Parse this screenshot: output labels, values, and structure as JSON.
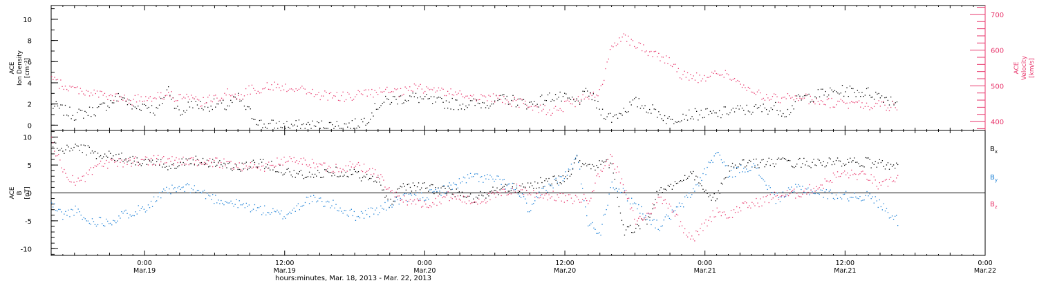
{
  "colors": {
    "axis": "#000000",
    "density": "#000000",
    "velocity": "#e8356b",
    "bx": "#000000",
    "by": "#1a7fd6",
    "bz": "#e8356b"
  },
  "figure": {
    "xlabel": "hours:minutes, Mar. 18, 2013 - Mar. 22, 2013"
  },
  "chart_data": [
    {
      "type": "scatter",
      "xlabel": "hours:minutes, Mar. 18, 2013 - Mar. 22, 2013",
      "xlim": [
        "2013-03-18 16:00",
        "2013-03-22 00:00"
      ],
      "x_ticks": [
        {
          "time": "0:00",
          "date": "Mar.19",
          "hours": 8
        },
        {
          "time": "12:00",
          "date": "Mar.19",
          "hours": 20
        },
        {
          "time": "0:00",
          "date": "Mar.20",
          "hours": 32
        },
        {
          "time": "12:00",
          "date": "Mar.20",
          "hours": 44
        },
        {
          "time": "0:00",
          "date": "Mar.21",
          "hours": 56
        },
        {
          "time": "12:00",
          "date": "Mar.21",
          "hours": 68
        },
        {
          "time": "0:00",
          "date": "Mar.22",
          "hours": 80
        }
      ],
      "data_end_hours": 72.5,
      "left_axis": {
        "label_lines": [
          "ACE",
          "Ion Density",
          "[cm⁻³]"
        ],
        "ylim": [
          -0.5,
          11.3
        ],
        "ticks": [
          0,
          2,
          4,
          6,
          8,
          10
        ]
      },
      "right_axis": {
        "label_lines": [
          "ACE",
          "Velocity",
          "[km/s]"
        ],
        "ylim": [
          375,
          725
        ],
        "ticks": [
          400,
          500,
          600,
          700
        ]
      },
      "series": [
        {
          "key": "density",
          "axis": "left",
          "points": [
            [
              0,
              1.9
            ],
            [
              2,
              1.0
            ],
            [
              4,
              1.5
            ],
            [
              6,
              2.8
            ],
            [
              7,
              1.6
            ],
            [
              8,
              2.0
            ],
            [
              9,
              1.3
            ],
            [
              10,
              3.5
            ],
            [
              11,
              1.0
            ],
            [
              12,
              2.2
            ],
            [
              13,
              1.8
            ],
            [
              14,
              2.0
            ],
            [
              15,
              1.8
            ],
            [
              16,
              2.6
            ],
            [
              17,
              1.2
            ],
            [
              18,
              0.1
            ],
            [
              20,
              0.0
            ],
            [
              22,
              0.0
            ],
            [
              24,
              0.0
            ],
            [
              26,
              0.1
            ],
            [
              27,
              0.6
            ],
            [
              28,
              2.0
            ],
            [
              29,
              2.4
            ],
            [
              31,
              2.7
            ],
            [
              33,
              2.2
            ],
            [
              35,
              2.0
            ],
            [
              37,
              2.1
            ],
            [
              39,
              2.5
            ],
            [
              41,
              2.0
            ],
            [
              43,
              2.8
            ],
            [
              45,
              2.2
            ],
            [
              46,
              3.2
            ],
            [
              47,
              1.4
            ],
            [
              48,
              0.7
            ],
            [
              50,
              2.2
            ],
            [
              52,
              1.2
            ],
            [
              53,
              0.4
            ],
            [
              54,
              1.0
            ],
            [
              56,
              1.1
            ],
            [
              57,
              1.0
            ],
            [
              58,
              1.4
            ],
            [
              60,
              1.5
            ],
            [
              62,
              1.7
            ],
            [
              63,
              1.2
            ],
            [
              64,
              2.5
            ],
            [
              66,
              3.0
            ],
            [
              68,
              3.3
            ],
            [
              70,
              3.1
            ],
            [
              71,
              2.8
            ],
            [
              72,
              2.4
            ],
            [
              72.5,
              2.2
            ]
          ]
        },
        {
          "key": "velocity",
          "axis": "right",
          "points": [
            [
              0,
              520
            ],
            [
              1,
              500
            ],
            [
              3,
              485
            ],
            [
              5,
              470
            ],
            [
              7,
              460
            ],
            [
              9,
              475
            ],
            [
              11,
              470
            ],
            [
              13,
              455
            ],
            [
              15,
              480
            ],
            [
              16,
              470
            ],
            [
              17,
              490
            ],
            [
              19,
              500
            ],
            [
              21,
              495
            ],
            [
              23,
              475
            ],
            [
              25,
              470
            ],
            [
              27,
              480
            ],
            [
              29,
              485
            ],
            [
              30,
              480
            ],
            [
              31,
              495
            ],
            [
              33,
              490
            ],
            [
              35,
              475
            ],
            [
              37,
              470
            ],
            [
              39,
              460
            ],
            [
              41,
              445
            ],
            [
              43,
              430
            ],
            [
              44,
              445
            ],
            [
              46,
              470
            ],
            [
              47,
              480
            ],
            [
              48,
              620
            ],
            [
              49,
              640
            ],
            [
              51,
              600
            ],
            [
              53,
              570
            ],
            [
              54,
              530
            ],
            [
              56,
              520
            ],
            [
              57,
              540
            ],
            [
              58,
              530
            ],
            [
              60,
              480
            ],
            [
              62,
              465
            ],
            [
              64,
              470
            ],
            [
              66,
              455
            ],
            [
              68,
              450
            ],
            [
              70,
              448
            ],
            [
              72,
              445
            ],
            [
              72.5,
              445
            ]
          ]
        }
      ]
    },
    {
      "type": "scatter",
      "xlim": [
        "2013-03-18 16:00",
        "2013-03-22 00:00"
      ],
      "left_axis": {
        "label_lines": [
          "ACE",
          "B",
          "[nT]"
        ],
        "ylim": [
          -11.2,
          11.2
        ],
        "ticks": [
          -10,
          -5,
          0,
          5,
          10
        ]
      },
      "zero_line": true,
      "series": [
        {
          "key": "bx",
          "name": "B",
          "sub": "x",
          "points": [
            [
              0,
              9.0
            ],
            [
              1,
              7.5
            ],
            [
              2,
              8.5
            ],
            [
              4,
              7.0
            ],
            [
              6,
              6.5
            ],
            [
              8,
              5.5
            ],
            [
              10,
              5.0
            ],
            [
              12,
              6.0
            ],
            [
              14,
              5.5
            ],
            [
              16,
              4.5
            ],
            [
              18,
              5.5
            ],
            [
              20,
              4.0
            ],
            [
              22,
              3.0
            ],
            [
              24,
              4.0
            ],
            [
              26,
              3.5
            ],
            [
              28,
              2.0
            ],
            [
              29,
              -2.0
            ],
            [
              30,
              1.5
            ],
            [
              32,
              1.0
            ],
            [
              34,
              0.5
            ],
            [
              36,
              -1.0
            ],
            [
              38,
              0.5
            ],
            [
              40,
              1.0
            ],
            [
              42,
              2.0
            ],
            [
              44,
              2.5
            ],
            [
              45,
              6.0
            ],
            [
              46,
              5.0
            ],
            [
              47,
              5.0
            ],
            [
              48,
              5.5
            ],
            [
              49,
              -7.0
            ],
            [
              51,
              -5.0
            ],
            [
              52,
              0.5
            ],
            [
              54,
              2.0
            ],
            [
              55,
              3.5
            ],
            [
              56,
              0.0
            ],
            [
              57,
              -1.0
            ],
            [
              58,
              4.5
            ],
            [
              60,
              5.5
            ],
            [
              62,
              5.5
            ],
            [
              64,
              5.5
            ],
            [
              66,
              5.5
            ],
            [
              68,
              5.5
            ],
            [
              70,
              5.5
            ],
            [
              72,
              5.0
            ],
            [
              72.5,
              4.5
            ]
          ]
        },
        {
          "key": "by",
          "name": "B",
          "sub": "y",
          "points": [
            [
              0,
              -2.0
            ],
            [
              1,
              -4.0
            ],
            [
              2,
              -3.0
            ],
            [
              3,
              -5.0
            ],
            [
              5,
              -5.0
            ],
            [
              6,
              -4.0
            ],
            [
              8,
              -2.5
            ],
            [
              10,
              0.5
            ],
            [
              12,
              1.0
            ],
            [
              14,
              -1.0
            ],
            [
              16,
              -2.0
            ],
            [
              18,
              -3.0
            ],
            [
              20,
              -4.0
            ],
            [
              22,
              -1.0
            ],
            [
              24,
              -2.0
            ],
            [
              26,
              -4.0
            ],
            [
              28,
              -3.0
            ],
            [
              30,
              -1.0
            ],
            [
              32,
              -0.5
            ],
            [
              34,
              1.0
            ],
            [
              36,
              3.0
            ],
            [
              38,
              2.5
            ],
            [
              40,
              0.5
            ],
            [
              41,
              -3.5
            ],
            [
              42,
              0.5
            ],
            [
              44,
              3.0
            ],
            [
              45,
              6.5
            ],
            [
              46,
              -5.5
            ],
            [
              47,
              -7.0
            ],
            [
              48,
              2.0
            ],
            [
              50,
              -2.0
            ],
            [
              52,
              -6.0
            ],
            [
              53,
              -4.0
            ],
            [
              54,
              -2.0
            ],
            [
              55,
              0.5
            ],
            [
              56,
              4.0
            ],
            [
              57,
              7.5
            ],
            [
              58,
              3.5
            ],
            [
              60,
              5.0
            ],
            [
              61,
              2.5
            ],
            [
              62,
              -1.0
            ],
            [
              64,
              1.0
            ],
            [
              66,
              0.0
            ],
            [
              68,
              -0.5
            ],
            [
              70,
              -0.5
            ],
            [
              71,
              -2.0
            ],
            [
              72,
              -4.0
            ],
            [
              72.5,
              -5.0
            ]
          ]
        },
        {
          "key": "bz",
          "name": "B",
          "sub": "z",
          "points": [
            [
              0,
              9.5
            ],
            [
              1,
              4.0
            ],
            [
              2,
              2.0
            ],
            [
              3,
              3.0
            ],
            [
              4,
              5.0
            ],
            [
              6,
              5.5
            ],
            [
              8,
              6.0
            ],
            [
              10,
              6.0
            ],
            [
              12,
              5.5
            ],
            [
              14,
              5.5
            ],
            [
              16,
              5.0
            ],
            [
              18,
              4.5
            ],
            [
              20,
              6.0
            ],
            [
              22,
              5.5
            ],
            [
              24,
              4.5
            ],
            [
              26,
              5.0
            ],
            [
              28,
              3.5
            ],
            [
              29,
              0.0
            ],
            [
              30,
              -1.0
            ],
            [
              32,
              -2.0
            ],
            [
              34,
              -0.5
            ],
            [
              36,
              -1.5
            ],
            [
              38,
              -0.5
            ],
            [
              40,
              1.0
            ],
            [
              41,
              0.0
            ],
            [
              43,
              -0.5
            ],
            [
              44,
              -1.0
            ],
            [
              46,
              -1.0
            ],
            [
              47,
              4.0
            ],
            [
              48,
              6.5
            ],
            [
              49,
              1.0
            ],
            [
              50,
              -5.0
            ],
            [
              51,
              -4.0
            ],
            [
              52,
              -1.0
            ],
            [
              53,
              -2.0
            ],
            [
              54,
              -6.0
            ],
            [
              55,
              -8.0
            ],
            [
              56,
              -5.5
            ],
            [
              57,
              -3.0
            ],
            [
              58,
              -4.0
            ],
            [
              59,
              -2.5
            ],
            [
              60,
              -2.0
            ],
            [
              62,
              -0.5
            ],
            [
              64,
              0.0
            ],
            [
              66,
              1.5
            ],
            [
              67,
              3.0
            ],
            [
              68,
              3.5
            ],
            [
              70,
              3.0
            ],
            [
              71,
              1.0
            ],
            [
              72,
              2.5
            ],
            [
              72.5,
              3.0
            ]
          ]
        }
      ]
    }
  ]
}
